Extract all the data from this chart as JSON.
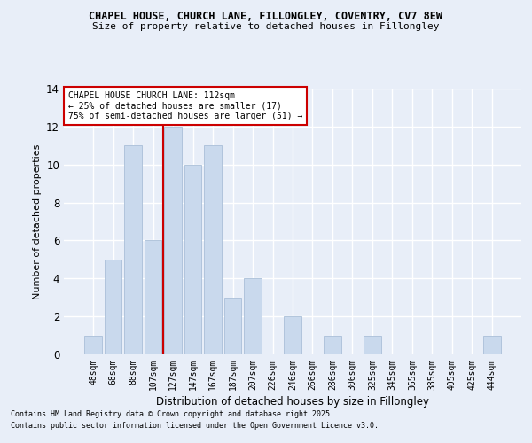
{
  "title1": "CHAPEL HOUSE, CHURCH LANE, FILLONGLEY, COVENTRY, CV7 8EW",
  "title2": "Size of property relative to detached houses in Fillongley",
  "xlabel": "Distribution of detached houses by size in Fillongley",
  "ylabel": "Number of detached properties",
  "categories": [
    "48sqm",
    "68sqm",
    "88sqm",
    "107sqm",
    "127sqm",
    "147sqm",
    "167sqm",
    "187sqm",
    "207sqm",
    "226sqm",
    "246sqm",
    "266sqm",
    "286sqm",
    "306sqm",
    "325sqm",
    "345sqm",
    "365sqm",
    "385sqm",
    "405sqm",
    "425sqm",
    "444sqm"
  ],
  "values": [
    1,
    5,
    11,
    6,
    12,
    10,
    11,
    3,
    4,
    0,
    2,
    0,
    1,
    0,
    1,
    0,
    0,
    0,
    0,
    0,
    1
  ],
  "bar_color": "#c9d9ed",
  "bar_edge_color": "#aabfd8",
  "vline_x": 3.5,
  "vline_color": "#cc0000",
  "annotation_lines": [
    "CHAPEL HOUSE CHURCH LANE: 112sqm",
    "← 25% of detached houses are smaller (17)",
    "75% of semi-detached houses are larger (51) →"
  ],
  "ylim": [
    0,
    14
  ],
  "yticks": [
    0,
    2,
    4,
    6,
    8,
    10,
    12,
    14
  ],
  "bg_color": "#e8eef8",
  "grid_color": "#ffffff",
  "footnote1": "Contains HM Land Registry data © Crown copyright and database right 2025.",
  "footnote2": "Contains public sector information licensed under the Open Government Licence v3.0."
}
